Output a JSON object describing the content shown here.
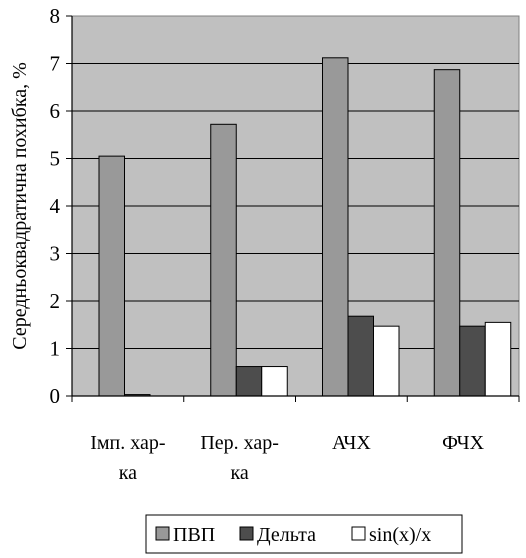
{
  "chart_data": {
    "type": "bar",
    "ylabel": "Середньоквадратична похибка, %",
    "ylim": [
      0,
      8
    ],
    "yticks": [
      0,
      1,
      2,
      3,
      4,
      5,
      6,
      7,
      8
    ],
    "categories": [
      [
        "Імп. хар-",
        "ка"
      ],
      [
        "Пер. хар-",
        "ка"
      ],
      [
        "АЧХ"
      ],
      [
        "ФЧХ"
      ]
    ],
    "series": [
      {
        "name": "ПВП",
        "color": "#999999",
        "values": [
          5.05,
          5.72,
          7.12,
          6.87
        ]
      },
      {
        "name": "Дельта",
        "color": "#4d4d4d",
        "values": [
          0.03,
          0.62,
          1.68,
          1.47
        ]
      },
      {
        "name": "sin(x)/x",
        "color": "#ffffff",
        "values": [
          0,
          0.62,
          1.47,
          1.55
        ]
      }
    ],
    "plot_background": "#c0c0c0",
    "gridlines": true,
    "legend_position": "bottom"
  }
}
